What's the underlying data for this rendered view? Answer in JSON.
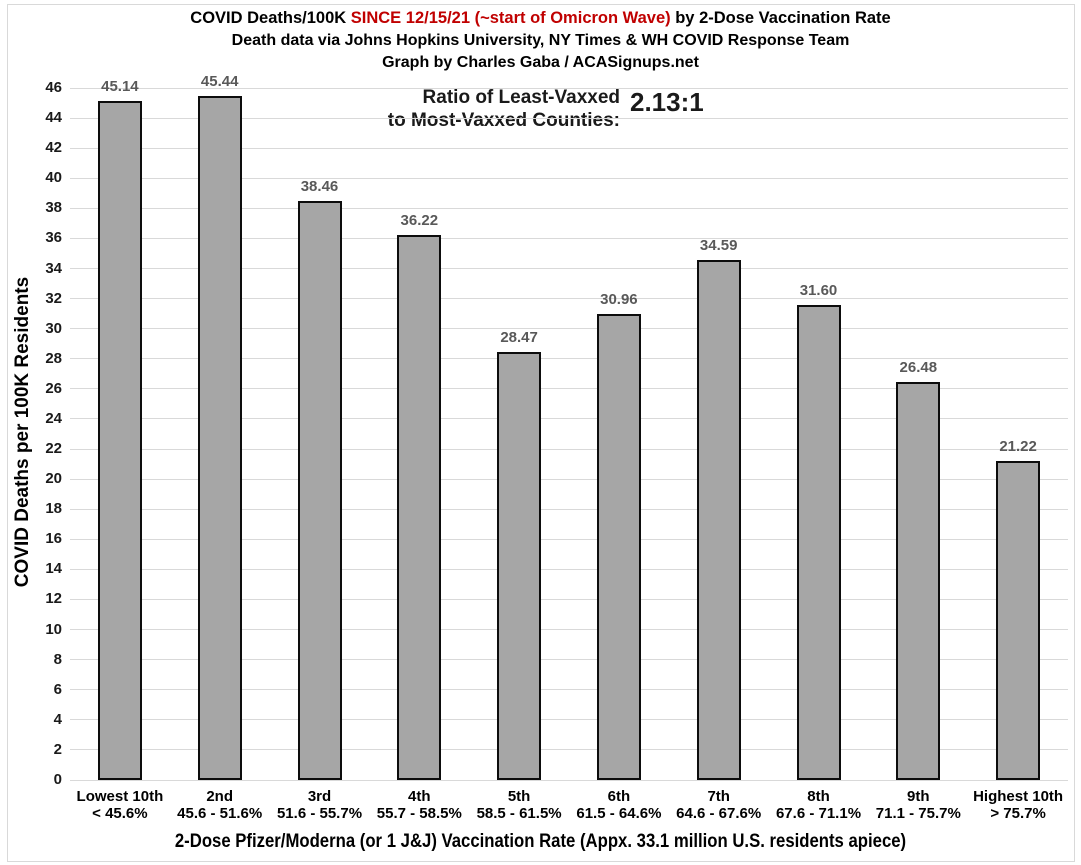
{
  "chart_data": {
    "type": "bar",
    "title_parts": [
      {
        "text": "COVID Deaths/100K ",
        "color": "black"
      },
      {
        "text": "SINCE 12/15/21 (~start of Omicron Wave)",
        "color": "red"
      },
      {
        "text": " by 2-Dose Vaccination Rate",
        "color": "black"
      }
    ],
    "subtitle": "Death data via Johns Hopkins University, NY Times & WH COVID Response Team",
    "credit": "Graph by Charles Gaba / ACASignups.net",
    "annotation": {
      "line1": "Ratio of Least-Vaxxed",
      "line2": "to Most-Vaxxed Counties:",
      "value": "2.13:1"
    },
    "categories": [
      {
        "label": "Lowest 10th",
        "sublabel": "< 45.6%"
      },
      {
        "label": "2nd",
        "sublabel": "45.6 - 51.6%"
      },
      {
        "label": "3rd",
        "sublabel": "51.6 - 55.7%"
      },
      {
        "label": "4th",
        "sublabel": "55.7 - 58.5%"
      },
      {
        "label": "5th",
        "sublabel": "58.5 - 61.5%"
      },
      {
        "label": "6th",
        "sublabel": "61.5 - 64.6%"
      },
      {
        "label": "7th",
        "sublabel": "64.6 - 67.6%"
      },
      {
        "label": "8th",
        "sublabel": "67.6 - 71.1%"
      },
      {
        "label": "9th",
        "sublabel": "71.1 - 75.7%"
      },
      {
        "label": "Highest 10th",
        "sublabel": "> 75.7%"
      }
    ],
    "values": [
      45.14,
      45.44,
      38.46,
      36.22,
      28.47,
      30.96,
      34.59,
      31.6,
      26.48,
      21.22
    ],
    "value_labels": [
      "45.14",
      "45.44",
      "38.46",
      "36.22",
      "28.47",
      "30.96",
      "34.59",
      "31.60",
      "26.48",
      "21.22"
    ],
    "ylabel": "COVID Deaths per 100K Residents",
    "xlabel": "2-Dose Pfizer/Moderna (or 1 J&J) Vaccination Rate (Appx. 33.1 million U.S. residents apiece)",
    "ylim": [
      0,
      46
    ],
    "ytick_step": 2,
    "grid": true,
    "legend": false,
    "colors": {
      "bar_fill": "#a6a6a6",
      "bar_border": "#0d0d0d",
      "grid": "#d9d9d9",
      "data_label": "#595959",
      "axis_text": "#1a1a1a",
      "title_red": "#c00000",
      "background": "#ffffff"
    }
  }
}
